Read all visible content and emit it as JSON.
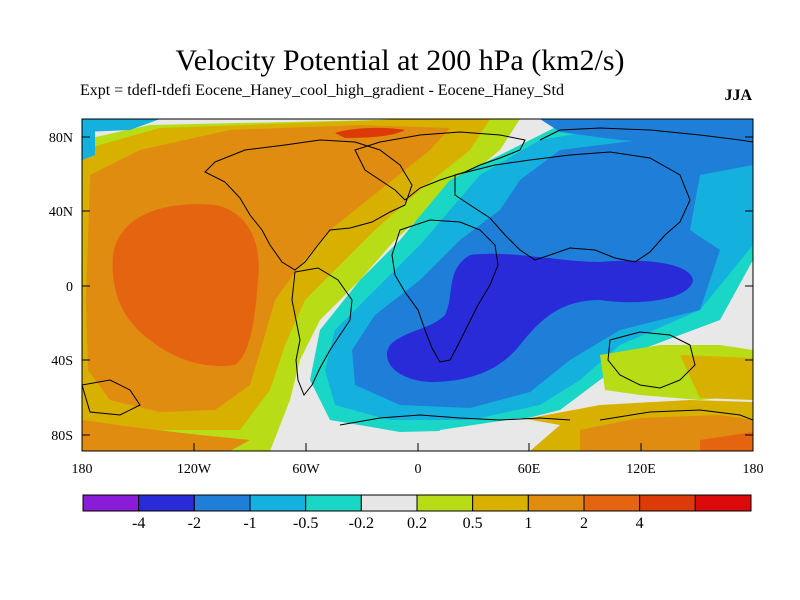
{
  "title": "Velocity Potential at 200 hPa (km2/s)",
  "subtitle": "Expt = tdefl-tdefi  Eocene_Haney_cool_high_gradient - Eocene_Haney_Std",
  "season": "JJA",
  "map": {
    "lat_ticks": [
      "80N",
      "40N",
      "0",
      "40S",
      "80S"
    ],
    "lon_ticks": [
      "180",
      "120W",
      "60W",
      "0",
      "60E",
      "120E",
      "180"
    ]
  },
  "legend": {
    "colors": [
      "#8a1bd6",
      "#2a2bd8",
      "#1f7fd8",
      "#14b0de",
      "#1ad6c6",
      "#e6e6e6",
      "#b8dc16",
      "#d8b000",
      "#e08c10",
      "#e46410",
      "#dc3a06",
      "#dc0a0a"
    ],
    "labels": [
      "-4",
      "-2",
      "-1",
      "-0.5",
      "-0.2",
      "0.2",
      "0.5",
      "1",
      "2",
      "4"
    ]
  }
}
